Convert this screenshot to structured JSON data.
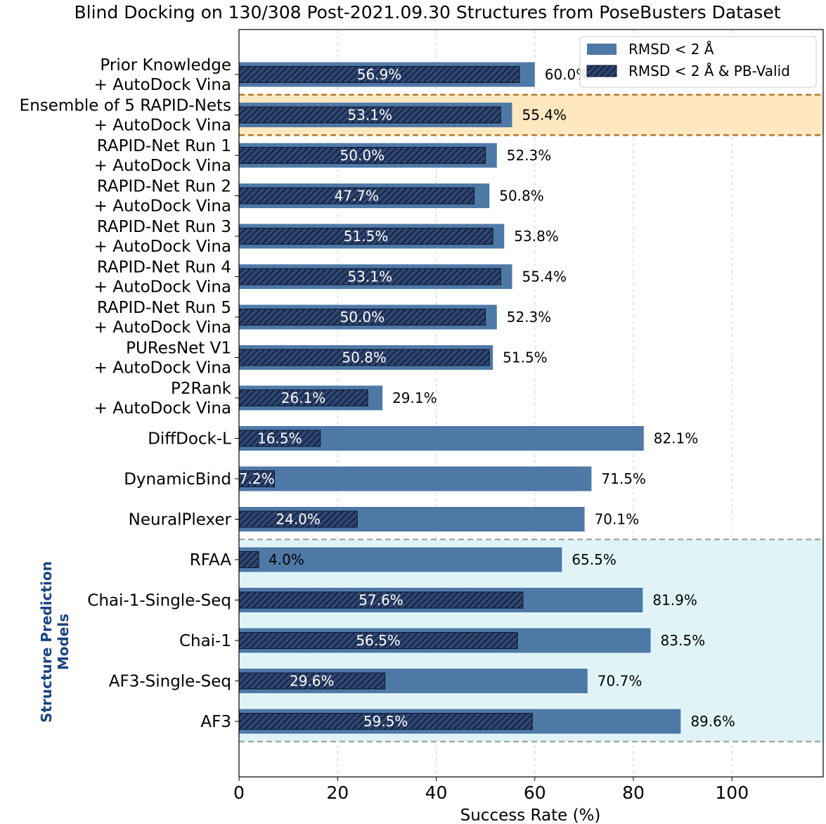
{
  "chart_data": {
    "type": "bar",
    "orientation": "horizontal",
    "title": "Blind Docking on 130/308 Post-2021.09.30 Structures from PoseBusters Dataset",
    "xlabel": "Success Rate (%)",
    "ylabel": "",
    "xlim": [
      0,
      118.5
    ],
    "xticks": [
      0,
      20,
      40,
      60,
      80,
      100
    ],
    "grid": "x-dashed",
    "legend_position": "top-right",
    "categories": [
      [
        "Prior Knowledge",
        "+ AutoDock Vina"
      ],
      [
        "Ensemble of 5 RAPID-Nets",
        "+ AutoDock Vina"
      ],
      [
        "RAPID-Net Run 1",
        "+ AutoDock Vina"
      ],
      [
        "RAPID-Net Run 2",
        "+ AutoDock Vina"
      ],
      [
        "RAPID-Net Run 3",
        "+ AutoDock Vina"
      ],
      [
        "RAPID-Net Run 4",
        "+ AutoDock Vina"
      ],
      [
        "RAPID-Net Run 5",
        "+ AutoDock Vina"
      ],
      [
        "PUResNet V1",
        "+ AutoDock Vina"
      ],
      [
        "P2Rank",
        "+ AutoDock Vina"
      ],
      [
        "DiffDock-L"
      ],
      [
        "DynamicBind"
      ],
      [
        "NeuralPlexer"
      ],
      [
        "RFAA"
      ],
      [
        "Chai-1-Single-Seq"
      ],
      [
        "Chai-1"
      ],
      [
        "AF3-Single-Seq"
      ],
      [
        "AF3"
      ]
    ],
    "series": [
      {
        "name": "RMSD < 2 Å",
        "color": "#4e79a7",
        "values": [
          60.0,
          55.4,
          52.3,
          50.8,
          53.8,
          55.4,
          52.3,
          51.5,
          29.1,
          82.1,
          71.5,
          70.1,
          65.5,
          81.9,
          83.5,
          70.7,
          89.6
        ],
        "labels": [
          "60.0%",
          "55.4%",
          "52.3%",
          "50.8%",
          "53.8%",
          "55.4%",
          "52.3%",
          "51.5%",
          "29.1%",
          "82.1%",
          "71.5%",
          "70.1%",
          "65.5%",
          "81.9%",
          "83.5%",
          "70.7%",
          "89.6%"
        ]
      },
      {
        "name": "RMSD < 2 Å & PB-Valid",
        "color": "#2e4570",
        "hatch": "diagonal",
        "values": [
          56.9,
          53.1,
          50.0,
          47.7,
          51.5,
          53.1,
          50.0,
          50.8,
          26.1,
          16.5,
          7.2,
          24.0,
          4.0,
          57.6,
          56.5,
          29.6,
          59.5
        ],
        "labels": [
          "56.9%",
          "53.1%",
          "50.0%",
          "47.7%",
          "51.5%",
          "53.1%",
          "50.0%",
          "50.8%",
          "26.1%",
          "16.5%",
          "7.2%",
          "24.0%",
          "4.0%",
          "57.6%",
          "56.5%",
          "29.6%",
          "59.5%"
        ]
      }
    ],
    "highlight": {
      "row": 1,
      "fill": "#ffe8c0",
      "border": "#b8782e"
    },
    "group_region": {
      "label_lines": [
        "Structure Prediction",
        "Models"
      ],
      "label_color": "#1a4480",
      "fill": "#e0f4f8",
      "border": "#999999",
      "from_row": 12,
      "to_row": 16
    }
  }
}
